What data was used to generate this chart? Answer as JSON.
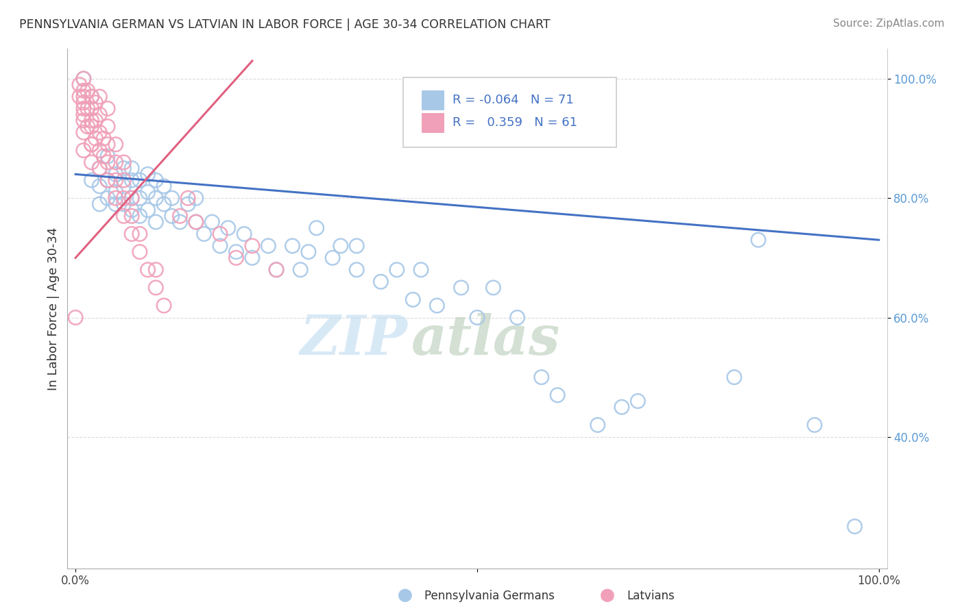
{
  "title": "PENNSYLVANIA GERMAN VS LATVIAN IN LABOR FORCE | AGE 30-34 CORRELATION CHART",
  "source_text": "Source: ZipAtlas.com",
  "ylabel": "In Labor Force | Age 30-34",
  "legend_r_blue": "-0.064",
  "legend_n_blue": "71",
  "legend_r_pink": "0.359",
  "legend_n_pink": "61",
  "blue_color": "#a8c8e8",
  "pink_color": "#f0a0b8",
  "blue_line_color": "#4472c4",
  "pink_line_color": "#e06080",
  "watermark_zip": "ZIP",
  "watermark_atlas": "atlas",
  "xlim": [
    0.0,
    1.0
  ],
  "ylim": [
    0.18,
    1.05
  ],
  "blue_x": [
    0.01,
    0.02,
    0.02,
    0.03,
    0.03,
    0.03,
    0.04,
    0.04,
    0.04,
    0.05,
    0.05,
    0.05,
    0.06,
    0.06,
    0.06,
    0.07,
    0.07,
    0.07,
    0.07,
    0.08,
    0.08,
    0.08,
    0.09,
    0.09,
    0.09,
    0.1,
    0.1,
    0.1,
    0.11,
    0.11,
    0.12,
    0.12,
    0.13,
    0.14,
    0.15,
    0.15,
    0.16,
    0.17,
    0.18,
    0.19,
    0.2,
    0.21,
    0.22,
    0.24,
    0.25,
    0.27,
    0.28,
    0.29,
    0.3,
    0.32,
    0.33,
    0.35,
    0.35,
    0.38,
    0.4,
    0.42,
    0.43,
    0.45,
    0.48,
    0.5,
    0.52,
    0.55,
    0.58,
    0.6,
    0.65,
    0.68,
    0.7,
    0.82,
    0.85,
    0.92,
    0.97
  ],
  "blue_y": [
    1.0,
    0.97,
    0.83,
    0.82,
    0.79,
    0.85,
    0.8,
    0.83,
    0.87,
    0.81,
    0.84,
    0.79,
    0.82,
    0.85,
    0.79,
    0.83,
    0.8,
    0.85,
    0.78,
    0.8,
    0.83,
    0.77,
    0.81,
    0.78,
    0.84,
    0.8,
    0.83,
    0.76,
    0.79,
    0.82,
    0.77,
    0.8,
    0.76,
    0.79,
    0.76,
    0.8,
    0.74,
    0.76,
    0.72,
    0.75,
    0.71,
    0.74,
    0.7,
    0.72,
    0.68,
    0.72,
    0.68,
    0.71,
    0.75,
    0.7,
    0.72,
    0.72,
    0.68,
    0.66,
    0.68,
    0.63,
    0.68,
    0.62,
    0.65,
    0.6,
    0.65,
    0.6,
    0.5,
    0.47,
    0.42,
    0.45,
    0.46,
    0.5,
    0.73,
    0.42,
    0.25
  ],
  "pink_x": [
    0.005,
    0.005,
    0.01,
    0.01,
    0.01,
    0.01,
    0.01,
    0.01,
    0.01,
    0.01,
    0.01,
    0.015,
    0.015,
    0.015,
    0.02,
    0.02,
    0.02,
    0.02,
    0.02,
    0.02,
    0.02,
    0.025,
    0.025,
    0.025,
    0.03,
    0.03,
    0.03,
    0.03,
    0.03,
    0.035,
    0.035,
    0.04,
    0.04,
    0.04,
    0.04,
    0.04,
    0.05,
    0.05,
    0.05,
    0.05,
    0.06,
    0.06,
    0.06,
    0.06,
    0.07,
    0.07,
    0.07,
    0.08,
    0.08,
    0.09,
    0.1,
    0.1,
    0.11,
    0.13,
    0.14,
    0.15,
    0.18,
    0.2,
    0.22,
    0.25,
    0.0
  ],
  "pink_y": [
    0.97,
    0.99,
    0.95,
    0.97,
    0.98,
    0.93,
    0.96,
    1.0,
    0.91,
    0.94,
    0.88,
    0.95,
    0.92,
    0.98,
    0.89,
    0.92,
    0.95,
    0.97,
    0.86,
    0.89,
    0.93,
    0.9,
    0.93,
    0.96,
    0.85,
    0.88,
    0.91,
    0.94,
    0.97,
    0.87,
    0.9,
    0.83,
    0.86,
    0.89,
    0.92,
    0.95,
    0.8,
    0.83,
    0.86,
    0.89,
    0.77,
    0.8,
    0.83,
    0.86,
    0.74,
    0.77,
    0.8,
    0.71,
    0.74,
    0.68,
    0.65,
    0.68,
    0.62,
    0.77,
    0.8,
    0.76,
    0.74,
    0.7,
    0.72,
    0.68,
    0.6
  ],
  "blue_trend_x": [
    0.0,
    1.0
  ],
  "blue_trend_y": [
    0.84,
    0.73
  ],
  "pink_trend_x": [
    0.0,
    0.22
  ],
  "pink_trend_y": [
    0.7,
    1.03
  ]
}
